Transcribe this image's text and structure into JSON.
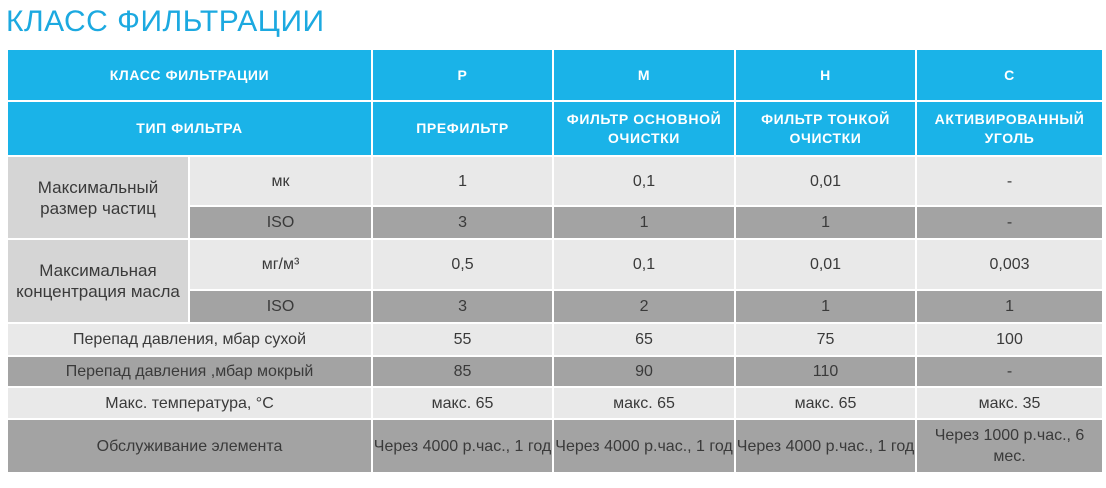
{
  "title": "КЛАСС ФИЛЬТРАЦИИ",
  "header": {
    "class_label": "КЛАСС ФИЛЬТРАЦИИ",
    "classes": [
      "P",
      "M",
      "H",
      "C"
    ],
    "type_label": "ТИП ФИЛЬТРА",
    "types": [
      "ПРЕФИЛЬТР",
      "ФИЛЬТР ОСНОВНОЙ ОЧИСТКИ",
      "ФИЛЬТР ТОНКОЙ ОЧИСТКИ",
      "АКТИВИРОВАННЫЙ УГОЛЬ"
    ]
  },
  "particles": {
    "group": "Максимальный размер частиц",
    "rows": [
      {
        "unit": "мк",
        "values": [
          "1",
          "0,1",
          "0,01",
          "-"
        ]
      },
      {
        "unit": "ISO",
        "values": [
          "3",
          "1",
          "1",
          "-"
        ]
      }
    ]
  },
  "oil": {
    "group": "Максимальная концентрация масла",
    "rows": [
      {
        "unit": "мг/м³",
        "values": [
          "0,5",
          "0,1",
          "0,01",
          "0,003"
        ]
      },
      {
        "unit": "ISO",
        "values": [
          "3",
          "2",
          "1",
          "1"
        ]
      }
    ]
  },
  "rows": [
    {
      "label": "Перепад давления, мбар сухой",
      "values": [
        "55",
        "65",
        "75",
        "100"
      ]
    },
    {
      "label": "Перепад давления ,мбар мокрый",
      "values": [
        "85",
        "90",
        "110",
        "-"
      ]
    },
    {
      "label": "Макс. температура, °С",
      "values": [
        "макс. 65",
        "макс. 65",
        "макс. 65",
        "макс. 35"
      ]
    },
    {
      "label": "Обслуживание элемента",
      "values": [
        "Через 4000 р.час., 1 год",
        "Через 4000 р.час., 1 год",
        "Через 4000 р.час., 1 год",
        "Через 1000 р.час., 6 мес."
      ]
    }
  ]
}
